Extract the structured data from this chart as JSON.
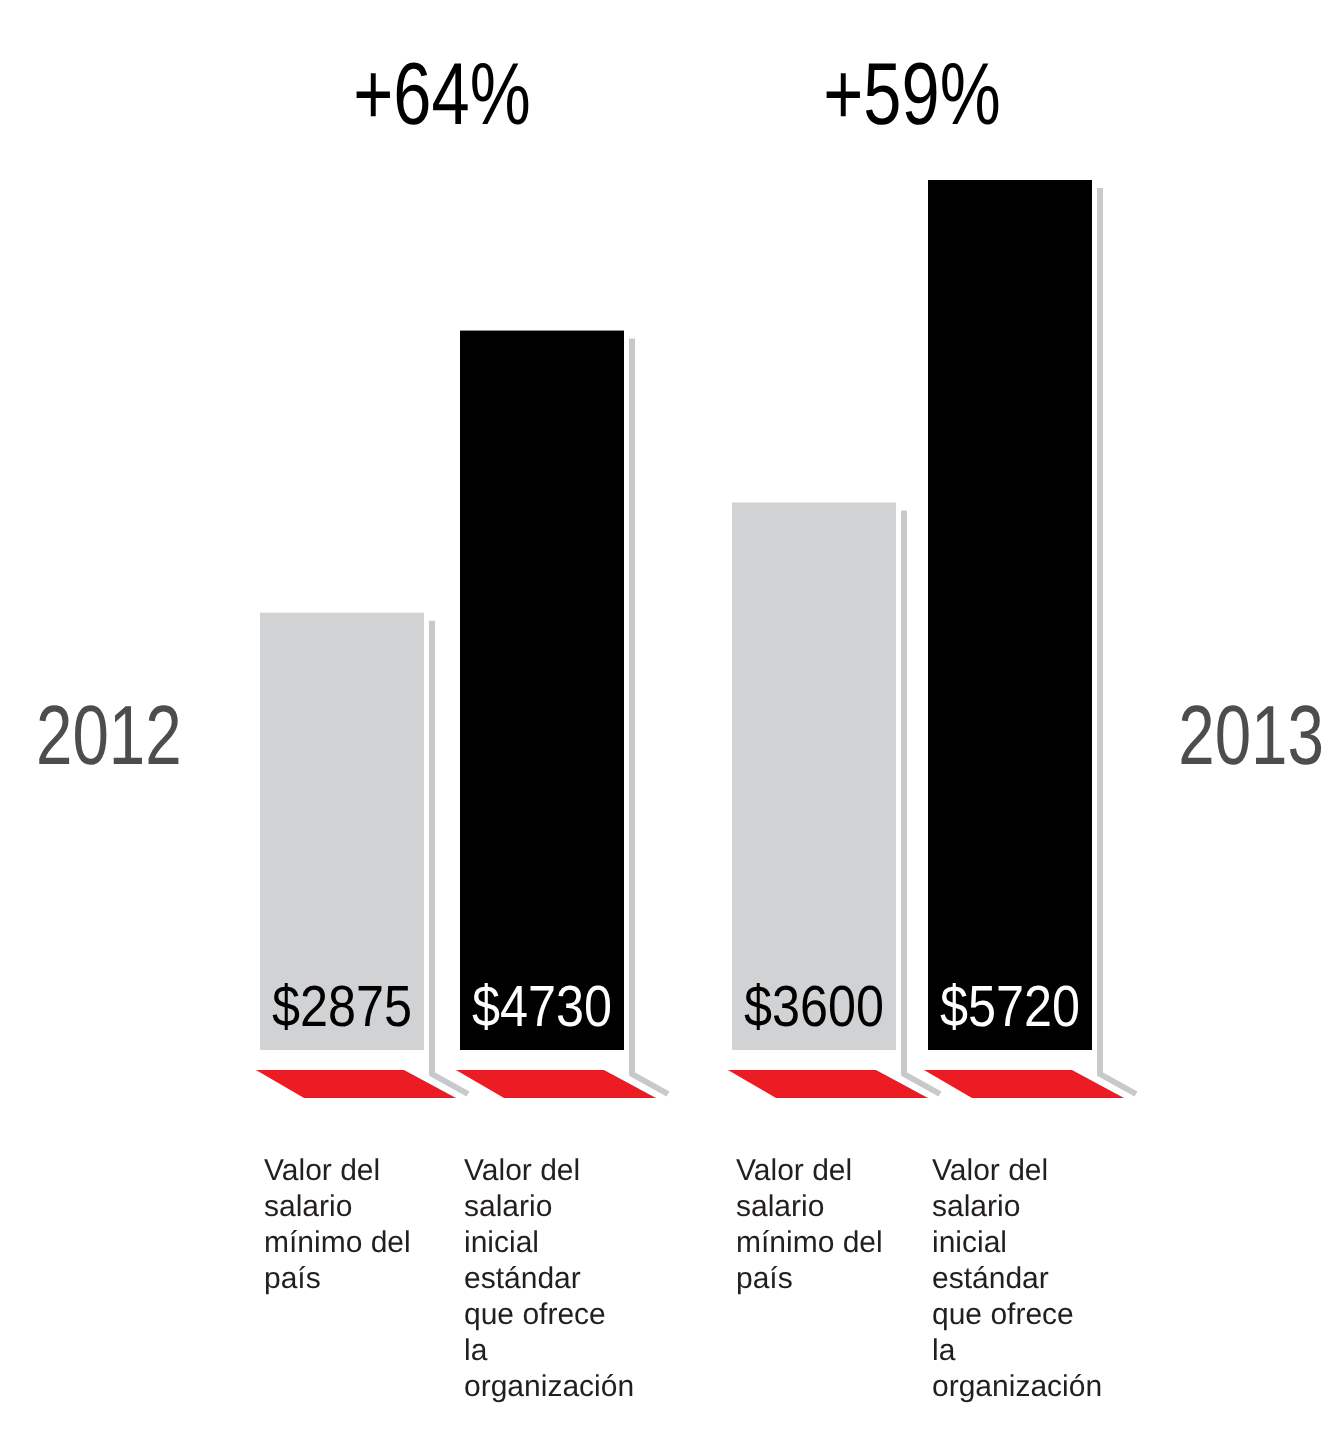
{
  "chart_data": {
    "type": "bar",
    "categories": [
      "Valor del salario mínimo del país",
      "Valor del salario inicial estándar que ofrece la organización",
      "Valor del salario mínimo del país",
      "Valor del salario inicial estándar que ofrece la organización"
    ],
    "values": [
      2875,
      4730,
      3600,
      5720
    ],
    "colors": [
      "#d1d2d4",
      "#000000",
      "#d1d2d4",
      "#000000"
    ],
    "value_labels": [
      "$2875",
      "$4730",
      "$3600",
      "$5720"
    ],
    "annotations": [
      "+64%",
      "+59%",
      "2012",
      "2013"
    ]
  }
}
